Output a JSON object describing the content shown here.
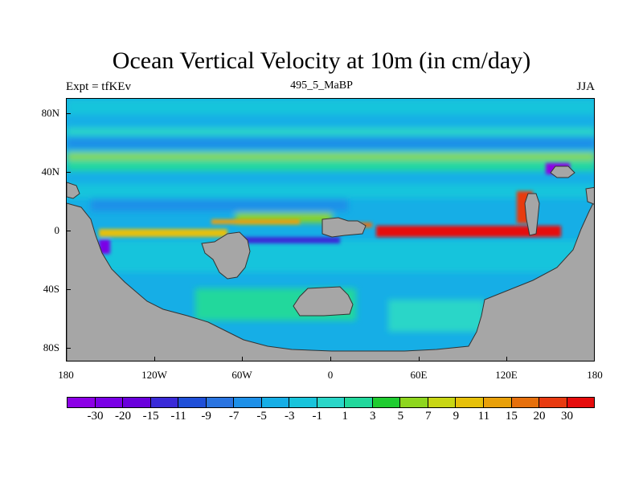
{
  "title": "Ocean Vertical Velocity at 10m (in cm/day)",
  "left_string": "Expt = tfKEv",
  "center_string": "495_5_MaBP",
  "right_string": "JJA",
  "map": {
    "projection": "cylindrical-equidistant",
    "lon_range": [
      -180,
      180
    ],
    "lat_range": [
      -90,
      90
    ],
    "land_color": "#a6a6a6",
    "y_ticks": [
      "80N",
      "40N",
      "0",
      "40S",
      "80S"
    ],
    "x_ticks": [
      "180",
      "120W",
      "60W",
      "0",
      "60E",
      "120E",
      "180"
    ]
  },
  "colorbar": {
    "colors": [
      "#8c00e6",
      "#7a00e6",
      "#6a00dc",
      "#3a2ad8",
      "#1f4fd8",
      "#2a74e0",
      "#1e90e8",
      "#16aee6",
      "#18c4dc",
      "#2ad6c8",
      "#22d89c",
      "#1fcc30",
      "#8ed61e",
      "#c8d614",
      "#e6c00a",
      "#e8a00a",
      "#e6700c",
      "#e83a10",
      "#e60c0c"
    ],
    "labels": [
      "-30",
      "-20",
      "-15",
      "-11",
      "-9",
      "-7",
      "-5",
      "-3",
      "-1",
      "1",
      "3",
      "5",
      "7",
      "9",
      "11",
      "15",
      "20",
      "30"
    ]
  }
}
